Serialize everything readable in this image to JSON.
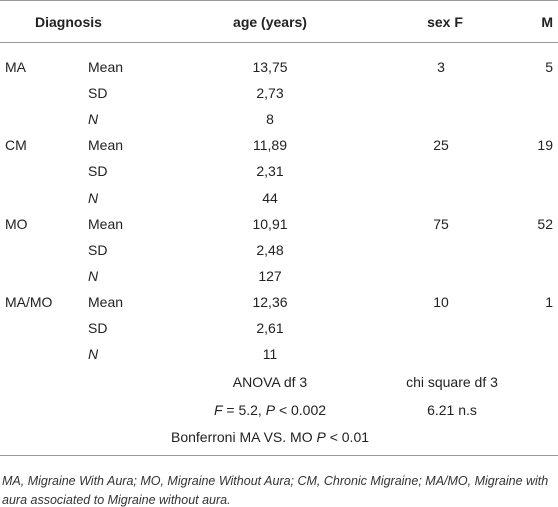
{
  "table": {
    "header": [
      "Diagnosis",
      "age (years)",
      "sex F",
      "M"
    ],
    "groups": [
      {
        "diagnosis": "MA",
        "rows": [
          {
            "stat": "Mean",
            "age": "13,75",
            "sex_f": "3",
            "m": "5"
          },
          {
            "stat": "SD",
            "age": "2,73"
          },
          {
            "stat": "N",
            "age": "8"
          }
        ]
      },
      {
        "diagnosis": "CM",
        "rows": [
          {
            "stat": "Mean",
            "age": "11,89",
            "sex_f": "25",
            "m": "19"
          },
          {
            "stat": "SD",
            "age": "2,31"
          },
          {
            "stat": "N",
            "age": "44"
          }
        ]
      },
      {
        "diagnosis": "MO",
        "rows": [
          {
            "stat": "Mean",
            "age": "10,91",
            "sex_f": "75",
            "m": "52"
          },
          {
            "stat": "SD",
            "age": "2,48"
          },
          {
            "stat": "N",
            "age": "127"
          }
        ]
      },
      {
        "diagnosis": "MA/MO",
        "rows": [
          {
            "stat": "Mean",
            "age": "12,36",
            "sex_f": "10",
            "m": "1"
          },
          {
            "stat": "SD",
            "age": "2,61"
          },
          {
            "stat": "N",
            "age": "11"
          }
        ]
      }
    ],
    "tests": {
      "age_test": "ANOVA df 3",
      "sex_test": "chi square df 3",
      "age_result": [
        "F",
        " = 5.2, ",
        "P",
        " < 0.002"
      ],
      "sex_result": "6.21 n.s",
      "posthoc": [
        "Bonferroni MA VS. MO ",
        "P",
        " < 0.01"
      ]
    },
    "footnote": "MA, Migraine With Aura; MO, Migraine Without Aura; CM, Chronic Migraine; MA/MO, Migraine with aura associated to Migraine without aura."
  }
}
